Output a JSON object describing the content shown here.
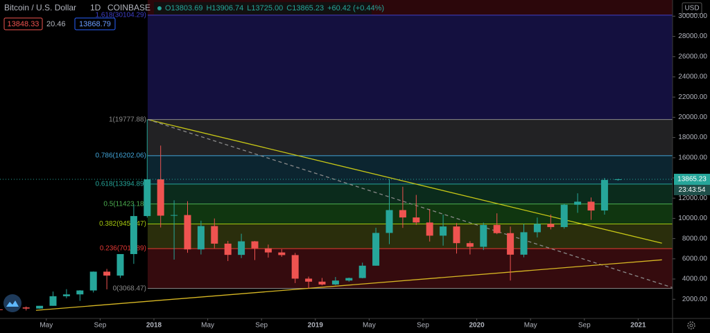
{
  "chart_data": {
    "type": "candlestick",
    "title": "Bitcoin / U.S. Dollar",
    "interval": "1D",
    "exchange": "COINBASE",
    "quote": [
      "O13803.69",
      "H13906.74",
      "L13725.00",
      "C13865.23",
      "+60.42 (+0.44%)"
    ],
    "bid": "13848.33",
    "spread": "20.46",
    "ask": "13868.79",
    "y_axis_label": "USD",
    "last_price": {
      "value": 13865.23,
      "label": "13865.23"
    },
    "countdown": "23:43:54",
    "up_color": "#26a69a",
    "down_color": "#ef5350",
    "x": [
      "2017-01",
      "2017-02",
      "2017-03",
      "2017-04",
      "2017-05",
      "2017-06",
      "2017-07",
      "2017-08",
      "2017-09",
      "2017-10",
      "2017-11",
      "2017-12",
      "2018-01",
      "2018-02",
      "2018-03",
      "2018-04",
      "2018-05",
      "2018-06",
      "2018-07",
      "2018-08",
      "2018-09",
      "2018-10",
      "2018-11",
      "2018-12",
      "2019-01",
      "2019-02",
      "2019-03",
      "2019-04",
      "2019-05",
      "2019-06",
      "2019-07",
      "2019-08",
      "2019-09",
      "2019-10",
      "2019-11",
      "2019-12",
      "2020-01",
      "2020-02",
      "2020-03",
      "2020-04",
      "2020-05",
      "2020-06",
      "2020-07",
      "2020-08",
      "2020-09",
      "2020-10",
      "2020-11"
    ],
    "open": [
      1000,
      970,
      1190,
      1080,
      1350,
      2300,
      2480,
      2870,
      4730,
      4340,
      6470,
      10230,
      13860,
      10270,
      10330,
      6930,
      9240,
      7500,
      6390,
      7730,
      7040,
      6630,
      6370,
      4040,
      3740,
      3460,
      3850,
      4100,
      5320,
      8560,
      10820,
      10090,
      9590,
      8290,
      9200,
      7550,
      7190,
      9350,
      8540,
      6410,
      8630,
      9450,
      9140,
      11350,
      11650,
      10780,
      13803.69
    ],
    "high": [
      1150,
      1200,
      1290,
      1350,
      2760,
      3000,
      2900,
      4750,
      5000,
      6470,
      11400,
      19777.88,
      17200,
      11790,
      11700,
      9770,
      9990,
      7770,
      8480,
      7760,
      7410,
      6950,
      6580,
      4240,
      4110,
      4200,
      4140,
      5620,
      9070,
      13880,
      13130,
      12320,
      10920,
      10370,
      9530,
      7750,
      9580,
      10500,
      9190,
      9450,
      10080,
      10380,
      11450,
      12480,
      12070,
      14000,
      13906.74
    ],
    "low": [
      750,
      920,
      890,
      1060,
      1350,
      2100,
      1840,
      2670,
      2980,
      4110,
      5500,
      10080,
      9100,
      5920,
      6600,
      6430,
      7040,
      5780,
      6070,
      5880,
      6120,
      6200,
      3600,
      3068.47,
      3380,
      3400,
      3740,
      4070,
      5320,
      7450,
      9060,
      9350,
      7710,
      7300,
      6520,
      6430,
      6870,
      8440,
      3850,
      6150,
      8120,
      8910,
      8980,
      10550,
      9850,
      10370,
      13725
    ],
    "close": [
      970,
      1190,
      1080,
      1350,
      2300,
      2480,
      2870,
      4730,
      4340,
      6470,
      10230,
      13860,
      10270,
      10330,
      6930,
      9240,
      7500,
      6390,
      7730,
      7040,
      6630,
      6370,
      4040,
      3740,
      3460,
      3850,
      4100,
      5320,
      8560,
      10820,
      10090,
      9590,
      8290,
      9200,
      7550,
      7190,
      9350,
      8540,
      6410,
      8630,
      9450,
      9140,
      11350,
      11650,
      10780,
      13800,
      13865.23
    ],
    "ylim": [
      100,
      31600
    ],
    "yticks": [
      {
        "value": 2000,
        "label": "2000.00"
      },
      {
        "value": 4000,
        "label": "4000.00"
      },
      {
        "value": 6000,
        "label": "6000.00"
      },
      {
        "value": 8000,
        "label": "8000.00"
      },
      {
        "value": 10000,
        "label": "10000.00"
      },
      {
        "value": 12000,
        "label": "12000.00"
      },
      {
        "value": 14000,
        "label": "14000.00"
      },
      {
        "value": 16000,
        "label": "16000.00"
      },
      {
        "value": 18000,
        "label": "18000.00"
      },
      {
        "value": 20000,
        "label": "20000.00"
      },
      {
        "value": 22000,
        "label": "22000.00"
      },
      {
        "value": 24000,
        "label": "24000.00"
      },
      {
        "value": 26000,
        "label": "26000.00"
      },
      {
        "value": 28000,
        "label": "28000.00"
      },
      {
        "value": 30000,
        "label": "30000.00"
      }
    ],
    "xticks": [
      {
        "value": "2017-05",
        "label": "May"
      },
      {
        "value": "2017-09",
        "label": "Sep"
      },
      {
        "value": "2018-01",
        "label": "2018"
      },
      {
        "value": "2018-05",
        "label": "May"
      },
      {
        "value": "2018-09",
        "label": "Sep"
      },
      {
        "value": "2019-01",
        "label": "2019"
      },
      {
        "value": "2019-05",
        "label": "May"
      },
      {
        "value": "2019-09",
        "label": "Sep"
      },
      {
        "value": "2020-01",
        "label": "2020"
      },
      {
        "value": "2020-05",
        "label": "May"
      },
      {
        "value": "2020-09",
        "label": "Sep"
      },
      {
        "value": "2021-01",
        "label": "2021"
      }
    ],
    "fib_start": "2017-12-17",
    "fib_top_fill": "#2c070b",
    "fib_levels": [
      {
        "label": "1.618(30104.29)",
        "value": 30104.29,
        "color": "#3f3fc8",
        "fill": "#14103f"
      },
      {
        "label": "1(19777.88)",
        "value": 19777.88,
        "color": "#8a8a8a",
        "fill": "#222224"
      },
      {
        "label": "0.786(16202.06)",
        "value": 16202.06,
        "color": "#42a5d8",
        "fill": "#0c2530"
      },
      {
        "label": "0.618(13394.89)",
        "value": 13394.89,
        "color": "#26a69a",
        "fill": "#0b2b1c"
      },
      {
        "label": "0.5(11423.18)",
        "value": 11423.18,
        "color": "#4caf50",
        "fill": "#103610"
      },
      {
        "label": "0.382(9451.47)",
        "value": 9451.47,
        "color": "#a5c90f",
        "fill": "#2a2e0c"
      },
      {
        "label": "0.236(7011.89)",
        "value": 7011.89,
        "color": "#e53935",
        "fill": "#350b0e"
      },
      {
        "label": "0(3068.47)",
        "value": 3068.47,
        "color": "#8a8a8a",
        "fill": null
      }
    ],
    "trendlines": [
      {
        "x": [
          "2017-12-17",
          "2021-02-24"
        ],
        "y": [
          19777.88,
          7545
        ],
        "color": "#c8c816",
        "dashed": false
      },
      {
        "x": [
          "2017-12-17",
          "2021-03-17"
        ],
        "y": [
          19777.88,
          3164
        ],
        "color": "#8a8a8a",
        "dashed": true
      },
      {
        "x": [
          "2017-04-08",
          "2021-02-24"
        ],
        "y": [
          905,
          5900
        ],
        "color": "#d8b824",
        "dashed": false
      }
    ]
  }
}
